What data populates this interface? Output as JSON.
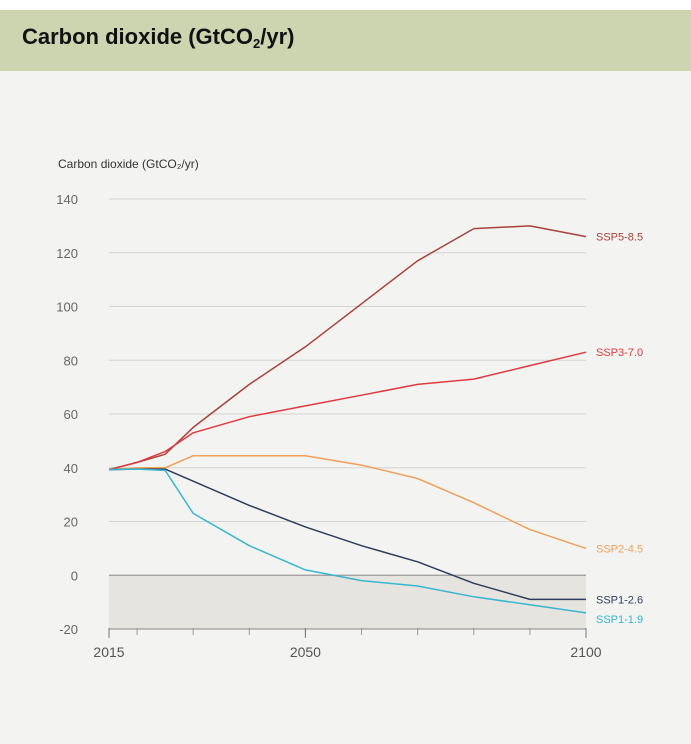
{
  "header": {
    "title_pre": "Carbon dioxide (GtCO",
    "title_sub": "2",
    "title_post": "/yr)"
  },
  "colors": {
    "header_bg": "#cdd5b0",
    "card_bg": "#f3f3f1",
    "negative_band": "#e6e4df"
  },
  "chart_data": {
    "type": "line",
    "title": "",
    "ylabel": "Carbon dioxide (GtCO₂/yr)",
    "xlabel": "",
    "xlim": [
      2015,
      2100
    ],
    "ylim": [
      -20,
      140
    ],
    "x_ticks": [
      2015,
      2050,
      2100
    ],
    "y_ticks": [
      -20,
      0,
      20,
      40,
      60,
      80,
      100,
      120,
      140
    ],
    "x_minor_ticks": [
      2020,
      2030,
      2040,
      2050,
      2060,
      2070,
      2080,
      2090
    ],
    "shaded_negative_region": true,
    "grid": "horizontal",
    "x": [
      2015,
      2020,
      2025,
      2030,
      2040,
      2050,
      2060,
      2070,
      2080,
      2090,
      2100
    ],
    "series": [
      {
        "name": "SSP5-8.5",
        "color": "#a8433c",
        "values": [
          39.3,
          42,
          45,
          55,
          71,
          85,
          101,
          117,
          129,
          130,
          126
        ]
      },
      {
        "name": "SSP3-7.0",
        "color": "#e03a3e",
        "values": [
          39.3,
          42,
          46,
          53,
          59,
          63,
          67,
          71,
          73,
          78,
          83
        ]
      },
      {
        "name": "SSP2-4.5",
        "color": "#f0a05a",
        "values": [
          39.3,
          40,
          40,
          44.5,
          44.5,
          44.5,
          41,
          36,
          27,
          17,
          10
        ]
      },
      {
        "name": "SSP1-2.6",
        "color": "#2f3d5e",
        "values": [
          39.3,
          39.5,
          39.5,
          35,
          26,
          18,
          11,
          5,
          -3,
          -9,
          -9
        ]
      },
      {
        "name": "SSP1-1.9",
        "color": "#36b7d0",
        "values": [
          39.3,
          39.5,
          39,
          23,
          11,
          2,
          -2,
          -4,
          -8,
          -11,
          -14
        ]
      }
    ]
  }
}
